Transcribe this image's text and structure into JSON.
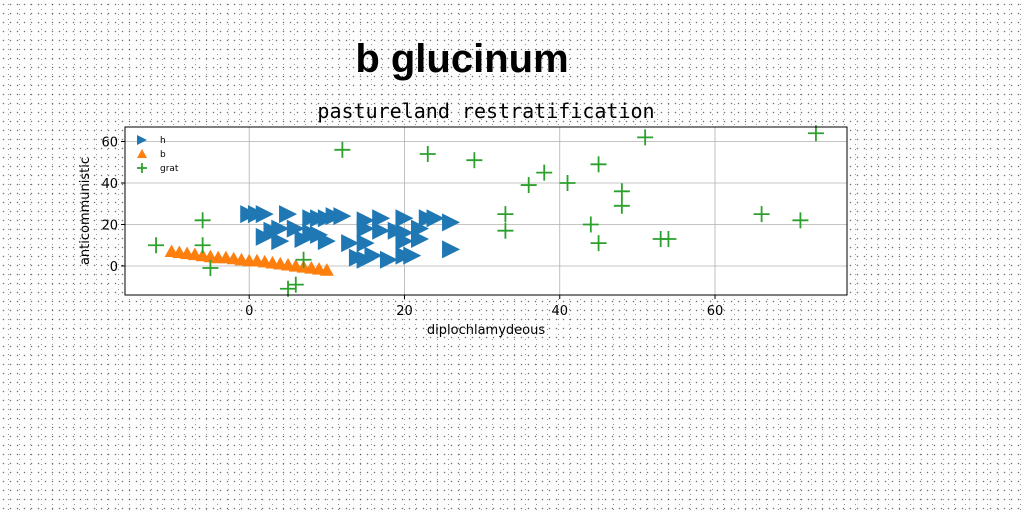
{
  "chart_data": {
    "type": "scatter",
    "suptitle": "b glucinum",
    "title": "pastureland restratification",
    "xlabel": "diplochlamydeous",
    "ylabel": "anticommunistic",
    "xlim": [
      -16,
      77
    ],
    "ylim": [
      -14,
      67
    ],
    "xticks": [
      0,
      20,
      40,
      60
    ],
    "yticks": [
      0,
      20,
      40,
      60
    ],
    "grid": true,
    "legend_position": "top-left",
    "series": [
      {
        "name": "h",
        "marker": "triangle-right",
        "color": "#1f77b4",
        "points": [
          [
            0,
            25
          ],
          [
            1,
            25
          ],
          [
            2,
            25
          ],
          [
            5,
            25
          ],
          [
            8,
            23
          ],
          [
            9,
            23
          ],
          [
            10,
            23
          ],
          [
            11,
            24
          ],
          [
            12,
            24
          ],
          [
            15,
            22
          ],
          [
            17,
            23
          ],
          [
            20,
            23
          ],
          [
            23,
            23
          ],
          [
            24,
            23
          ],
          [
            26,
            21
          ],
          [
            3,
            17
          ],
          [
            4,
            18
          ],
          [
            6,
            18
          ],
          [
            8,
            16
          ],
          [
            9,
            15
          ],
          [
            15,
            18
          ],
          [
            17,
            17
          ],
          [
            19,
            17
          ],
          [
            20,
            16
          ],
          [
            22,
            18
          ],
          [
            2,
            14
          ],
          [
            4,
            12
          ],
          [
            7,
            13
          ],
          [
            10,
            12
          ],
          [
            13,
            11
          ],
          [
            15,
            11
          ],
          [
            20,
            12
          ],
          [
            22,
            13
          ],
          [
            26,
            8
          ],
          [
            14,
            4
          ],
          [
            16,
            5
          ],
          [
            18,
            3
          ],
          [
            20,
            5
          ],
          [
            21,
            5
          ],
          [
            15,
            3
          ]
        ]
      },
      {
        "name": "b",
        "marker": "triangle-up",
        "color": "#ff7f0e",
        "points": [
          [
            -10,
            7
          ],
          [
            -9,
            6.5
          ],
          [
            -8,
            6
          ],
          [
            -7,
            5.5
          ],
          [
            -6,
            5
          ],
          [
            -5,
            4.5
          ],
          [
            -4,
            4
          ],
          [
            -3,
            4
          ],
          [
            -2,
            3.5
          ],
          [
            -1,
            3
          ],
          [
            0,
            2.5
          ],
          [
            1,
            2.5
          ],
          [
            2,
            2
          ],
          [
            3,
            1.5
          ],
          [
            4,
            1
          ],
          [
            5,
            0.5
          ],
          [
            6,
            0
          ],
          [
            7,
            -0.5
          ],
          [
            8,
            -1
          ],
          [
            9,
            -1.5
          ],
          [
            10,
            -2
          ]
        ]
      },
      {
        "name": "grat",
        "marker": "plus",
        "color": "#2ca02c",
        "points": [
          [
            -12,
            10
          ],
          [
            -6,
            22
          ],
          [
            -6,
            10
          ],
          [
            -5,
            -1
          ],
          [
            5,
            -11
          ],
          [
            6,
            -9
          ],
          [
            7,
            3
          ],
          [
            12,
            56
          ],
          [
            23,
            54
          ],
          [
            29,
            51
          ],
          [
            33,
            25
          ],
          [
            33,
            17
          ],
          [
            36,
            39
          ],
          [
            38,
            45
          ],
          [
            41,
            40
          ],
          [
            44,
            20
          ],
          [
            45,
            49
          ],
          [
            45,
            11
          ],
          [
            48,
            36
          ],
          [
            48,
            29
          ],
          [
            51,
            62
          ],
          [
            53,
            13
          ],
          [
            54,
            13
          ],
          [
            66,
            25
          ],
          [
            71,
            22
          ],
          [
            73,
            64
          ]
        ]
      }
    ]
  }
}
